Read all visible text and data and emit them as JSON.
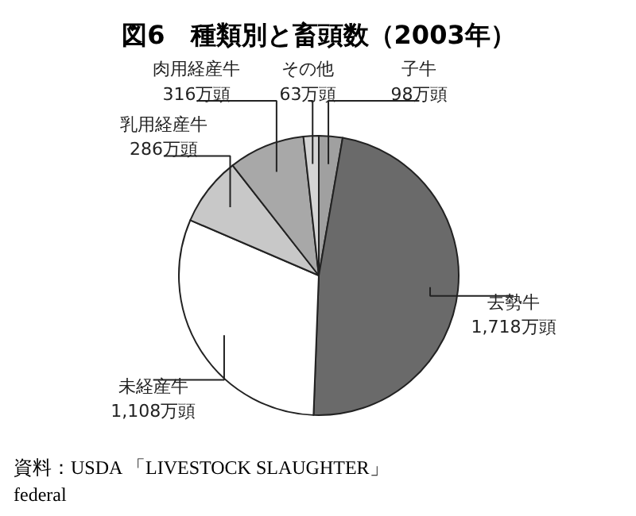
{
  "chart_data": {
    "type": "pie",
    "title": "図6　種類別と畜頭数（2003年）",
    "categories": [
      "子牛",
      "去勢牛",
      "未経産牛",
      "乳用経産牛",
      "肉用経産牛",
      "その他"
    ],
    "values": [
      98,
      1718,
      1108,
      286,
      316,
      63
    ],
    "value_labels": [
      "98万頭",
      "1,718万頭",
      "1,108万頭",
      "286万頭",
      "316万頭",
      "63万頭"
    ],
    "colors": [
      "#a0a0a0",
      "#6a6a6a",
      "#ffffff",
      "#c8c8c8",
      "#a8a8a8",
      "#d4d4d4"
    ],
    "annotations": [
      "資料：USDA 「LIVESTOCK SLAUGHTER」\nfederal"
    ]
  }
}
